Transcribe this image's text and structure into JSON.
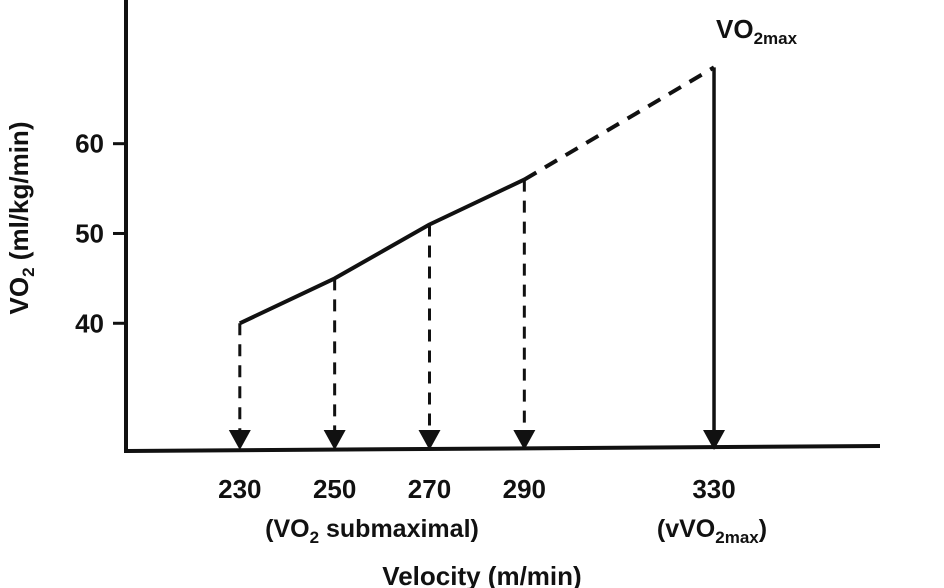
{
  "chart_data": {
    "type": "line",
    "xlabel": "Velocity (m/min)",
    "x_group_label": "(VO₂ submaximal)",
    "ylabel": "VO₂ (ml/kg/min)",
    "x_ticks": [
      230,
      250,
      270,
      290,
      330
    ],
    "y_ticks": [
      40,
      50,
      60
    ],
    "xlim": [
      206,
      365
    ],
    "ylim": [
      26,
      76
    ],
    "series": [
      {
        "style": "solid",
        "points": [
          [
            230,
            40
          ],
          [
            250,
            45
          ],
          [
            270,
            51
          ],
          [
            290,
            56
          ]
        ]
      },
      {
        "style": "dashed",
        "points": [
          [
            290,
            56
          ],
          [
            330,
            68.5
          ]
        ]
      }
    ],
    "submaximal_drops": [
      230,
      250,
      270,
      290
    ],
    "vo2max": {
      "x": 330,
      "y": 68.5
    },
    "annotations": {
      "vo2max_label": "VO₂max",
      "vvo2max_label": "(vVO₂max)"
    }
  }
}
